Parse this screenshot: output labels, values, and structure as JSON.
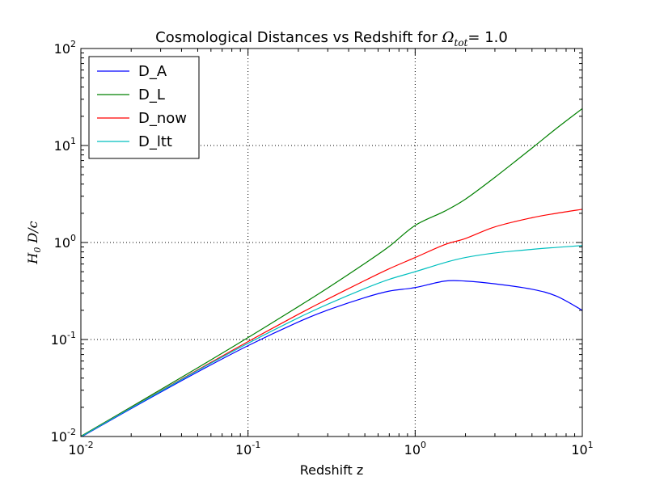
{
  "chart_data": {
    "type": "line",
    "title": {
      "prefix": "Cosmological Distances vs Redshift for ",
      "symbol": "Ω",
      "subscript": "tot",
      "suffix": "= 1.0"
    },
    "xlabel": "Redshift z",
    "ylabel": {
      "main1": "H",
      "sub": "0",
      "main2": " D/c"
    },
    "xscale": "log",
    "yscale": "log",
    "xlim": [
      0.01,
      10
    ],
    "ylim": [
      0.01,
      100
    ],
    "grid": true,
    "legend_position": "top-left",
    "x_ticks": [
      {
        "value": 0.01,
        "base": "10",
        "exp": "-2"
      },
      {
        "value": 0.1,
        "base": "10",
        "exp": "-1"
      },
      {
        "value": 1,
        "base": "10",
        "exp": "0"
      },
      {
        "value": 10,
        "base": "10",
        "exp": "1"
      }
    ],
    "y_ticks": [
      {
        "value": 0.01,
        "base": "10",
        "exp": "-2"
      },
      {
        "value": 0.1,
        "base": "10",
        "exp": "-1"
      },
      {
        "value": 1,
        "base": "10",
        "exp": "0"
      },
      {
        "value": 10,
        "base": "10",
        "exp": "1"
      },
      {
        "value": 100,
        "base": "10",
        "exp": "2"
      }
    ],
    "x": [
      0.01,
      0.02,
      0.05,
      0.1,
      0.2,
      0.3,
      0.5,
      0.7,
      1.0,
      1.5,
      2.0,
      3.0,
      5.0,
      7.0,
      10.0
    ],
    "series": [
      {
        "name": "D_A",
        "color": "#0000ff",
        "values": [
          0.00985,
          0.0194,
          0.0463,
          0.0864,
          0.1516,
          0.2011,
          0.2705,
          0.3156,
          0.3431,
          0.4,
          0.4,
          0.375,
          0.33,
          0.28,
          0.2
        ]
      },
      {
        "name": "D_L",
        "color": "#008000",
        "values": [
          0.01005,
          0.0202,
          0.0511,
          0.1046,
          0.2183,
          0.3398,
          0.6085,
          0.9122,
          1.5,
          2.1,
          2.8,
          4.7,
          9.4,
          15.0,
          24.0
        ]
      },
      {
        "name": "D_now",
        "color": "#ff0000",
        "values": [
          0.00995,
          0.0198,
          0.0486,
          0.0951,
          0.1819,
          0.2614,
          0.4058,
          0.5366,
          0.7,
          0.95,
          1.1,
          1.45,
          1.8,
          2.0,
          2.2
        ]
      },
      {
        "name": "D_ltt",
        "color": "#00bfbf",
        "values": [
          0.00995,
          0.0197,
          0.0479,
          0.0914,
          0.1673,
          0.2311,
          0.3354,
          0.4173,
          0.5,
          0.62,
          0.7,
          0.78,
          0.85,
          0.89,
          0.93
        ]
      }
    ]
  }
}
